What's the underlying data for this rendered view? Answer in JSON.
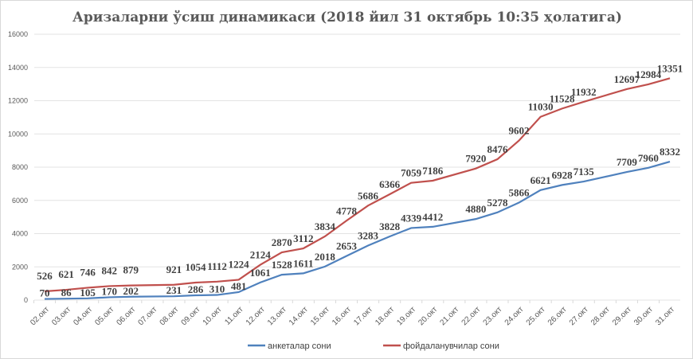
{
  "chart_data": {
    "type": "line",
    "title": "Аризаларни ўсиш динамикаси (2018 йил 31 октябрь 10:35 ҳолатига)",
    "xlabel": "",
    "ylabel": "",
    "ylim": [
      0,
      16000
    ],
    "yticks": [
      0,
      2000,
      4000,
      6000,
      8000,
      10000,
      12000,
      14000,
      16000
    ],
    "grid": true,
    "legend_position": "bottom",
    "categories": [
      "02.окт",
      "03.окт",
      "04.окт",
      "05.окт",
      "06.окт",
      "07.окт",
      "08.окт",
      "09.окт",
      "10.окт",
      "11.окт",
      "12.окт",
      "13.окт",
      "14.окт",
      "15.окт",
      "16.окт",
      "17.окт",
      "18.окт",
      "19.окт",
      "20.окт",
      "21.окт",
      "22.окт",
      "23.окт",
      "24.окт",
      "25.окт",
      "26.окт",
      "27.окт",
      "28.окт",
      "29.окт",
      "30.окт",
      "31.окт"
    ],
    "series": [
      {
        "name": "анкеталар сони",
        "color": "#4f81bd",
        "values": [
          70,
          86,
          105,
          170,
          202,
          null,
          231,
          286,
          310,
          481,
          1061,
          1528,
          1611,
          2018,
          2653,
          3283,
          3828,
          4339,
          4412,
          null,
          4880,
          5278,
          5866,
          6621,
          6928,
          7135,
          null,
          7709,
          7960,
          8332
        ]
      },
      {
        "name": "фойдаланувчилар сони",
        "color": "#c0504d",
        "values": [
          526,
          621,
          746,
          842,
          879,
          null,
          921,
          1054,
          1112,
          1224,
          2124,
          2870,
          3112,
          3834,
          4778,
          5686,
          6366,
          7059,
          7186,
          null,
          7920,
          8476,
          9602,
          11030,
          11528,
          11932,
          null,
          12697,
          12984,
          13351
        ]
      }
    ]
  }
}
